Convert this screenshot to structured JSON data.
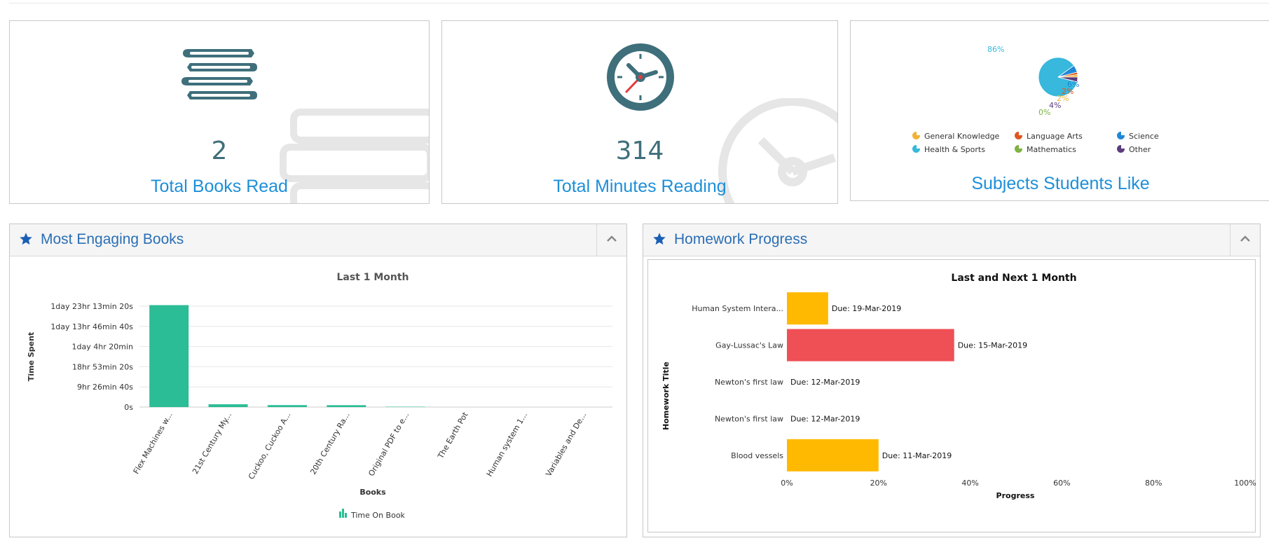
{
  "stats": {
    "books": {
      "value": "2",
      "label": "Total Books Read"
    },
    "minutes": {
      "value": "314",
      "label": "Total Minutes Reading"
    },
    "subjects": {
      "label": "Subjects Students Like"
    }
  },
  "pie": {
    "slices": [
      {
        "subject": "Health & Sports",
        "percent": 86,
        "label": "86%",
        "color": "#37b8dc"
      },
      {
        "subject": "Science",
        "percent": 6,
        "label": "6%",
        "color": "#1e88d8"
      },
      {
        "subject": "Language Arts",
        "percent": 2,
        "label": "2%",
        "color": "#e0561f"
      },
      {
        "subject": "General Knowledge",
        "percent": 2,
        "label": "2%",
        "color": "#f2b233"
      },
      {
        "subject": "Other",
        "percent": 4,
        "label": "4%",
        "color": "#5b3c7e"
      },
      {
        "subject": "Mathematics",
        "percent": 0,
        "label": "0%",
        "color": "#7cb342"
      }
    ],
    "legend": [
      {
        "label": "General Knowledge",
        "color": "#f2b233"
      },
      {
        "label": "Language Arts",
        "color": "#e0561f"
      },
      {
        "label": "Science",
        "color": "#1e88d8"
      },
      {
        "label": "Health & Sports",
        "color": "#37b8dc"
      },
      {
        "label": "Mathematics",
        "color": "#7cb342"
      },
      {
        "label": "Other",
        "color": "#5b3c7e"
      }
    ]
  },
  "panels": {
    "books": {
      "title": "Most Engaging Books"
    },
    "homework": {
      "title": "Homework Progress"
    }
  },
  "chart_data": [
    {
      "type": "bar",
      "title": "Last 1 Month",
      "xlabel": "Books",
      "ylabel": "Time Spent",
      "categories": [
        "Flex Machines w...",
        "21st Century My...",
        "Cuckoo, Cuckoo A...",
        "20th Century Ra...",
        "Original PDF to e...",
        "The Earth Pot",
        "Human system 1...",
        "Variables and De..."
      ],
      "series": [
        {
          "name": "Time On Book",
          "values": [
            171800,
            4700,
            3300,
            3200,
            600,
            0,
            0,
            0
          ],
          "color": "#2bbd95"
        }
      ],
      "ylim": [
        0,
        170000
      ],
      "y_ticks": [
        {
          "value": 0,
          "label": "0s"
        },
        {
          "value": 34000,
          "label": "9hr 26min 40s"
        },
        {
          "value": 68000,
          "label": "18hr 53min 20s"
        },
        {
          "value": 102000,
          "label": "1day 4hr 20min"
        },
        {
          "value": 136000,
          "label": "1day 13hr 46min 40s"
        },
        {
          "value": 170000,
          "label": "1day 23hr 13min 20s"
        }
      ],
      "grid": true,
      "legend_position": "bottom-center"
    },
    {
      "type": "bar",
      "orientation": "horizontal",
      "title": "Last and Next 1 Month",
      "xlabel": "Progress",
      "ylabel": "Homework Title",
      "categories": [
        "Human System Intera...",
        "Gay-Lussac's Law",
        "Newton's first law",
        "Newton's first law",
        "Blood vessels"
      ],
      "values": [
        9,
        36.5,
        0,
        0,
        20
      ],
      "colors": [
        "#ffb900",
        "#ee5055",
        "#ffb900",
        "#ffb900",
        "#ffb900"
      ],
      "annotations": [
        "Due: 19-Mar-2019",
        "Due: 15-Mar-2019",
        "Due: 12-Mar-2019",
        "Due: 12-Mar-2019",
        "Due: 11-Mar-2019"
      ],
      "x_ticks": [
        "0%",
        "20%",
        "40%",
        "60%",
        "80%",
        "100%"
      ],
      "xlim": [
        0,
        100
      ],
      "grid": false
    }
  ]
}
